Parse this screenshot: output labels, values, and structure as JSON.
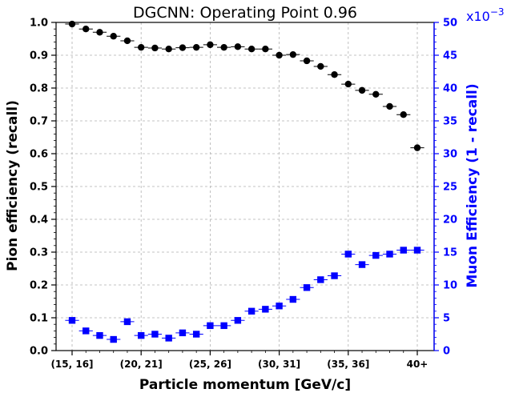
{
  "chart_data": {
    "type": "scatter",
    "title": "DGCNN: Operating Point 0.96",
    "xlabel": "Particle momentum [GeV/c]",
    "ylabel_left": "Pion efficiency (recall)",
    "ylabel_right": "Muon Efficiency (1 - recall)",
    "right_axis_multiplier_base": "x10",
    "right_axis_multiplier_exp": "−3",
    "x_tick_labels": [
      "(15, 16]",
      "(20, 21]",
      "(25, 26]",
      "(30, 31]",
      "(35, 36]",
      "40+"
    ],
    "x_tick_index": [
      0,
      5,
      10,
      15,
      20,
      25
    ],
    "left_ylim": [
      0,
      1.0
    ],
    "left_yticks": [
      "0.0",
      "0.1",
      "0.2",
      "0.3",
      "0.4",
      "0.5",
      "0.6",
      "0.7",
      "0.8",
      "0.9",
      "1.0"
    ],
    "right_ylim": [
      0,
      50
    ],
    "right_yticks": [
      "0",
      "5",
      "10",
      "15",
      "20",
      "25",
      "30",
      "35",
      "40",
      "45",
      "50"
    ],
    "grid": true,
    "colors": {
      "pion": "#000000",
      "muon": "#0000ff",
      "right_axis": "#0000ff"
    },
    "series": [
      {
        "axis": "left",
        "marker": "circle",
        "values": [
          0.995,
          0.98,
          0.97,
          0.958,
          0.944,
          0.924,
          0.922,
          0.919,
          0.923,
          0.924,
          0.932,
          0.924,
          0.926,
          0.919,
          0.919,
          0.9,
          0.902,
          0.883,
          0.866,
          0.841,
          0.812,
          0.793,
          0.781,
          0.744,
          0.719,
          0.618
        ]
      },
      {
        "axis": "right",
        "marker": "square",
        "values": [
          4.6,
          3.0,
          2.3,
          1.7,
          4.4,
          2.3,
          2.5,
          1.9,
          2.7,
          2.5,
          3.8,
          3.8,
          4.6,
          6.0,
          6.3,
          6.8,
          7.8,
          9.6,
          10.8,
          11.4,
          14.7,
          13.1,
          14.5,
          14.7,
          15.3,
          15.3
        ]
      }
    ]
  }
}
